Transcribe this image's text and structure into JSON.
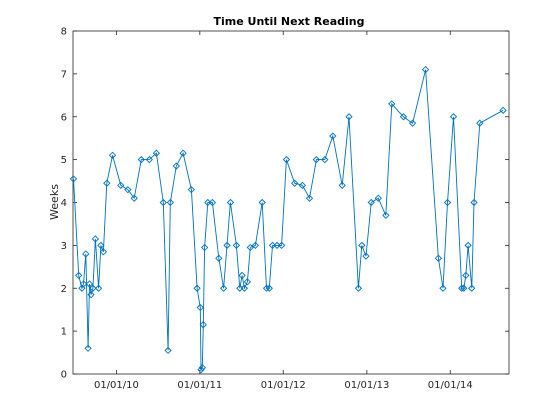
{
  "chart_data": {
    "type": "line",
    "title": "Time Until Next Reading",
    "xlabel": "",
    "ylabel": "Weeks",
    "ylim": [
      0,
      8
    ],
    "xlim": [
      "2009-06-25",
      "2014-09-15"
    ],
    "grid": false,
    "marker": "diamond",
    "colors": {
      "line": "#0072BD",
      "axes": "#262626",
      "background": "#ffffff"
    },
    "x_ticks": [
      "01/01/10",
      "01/01/11",
      "01/01/12",
      "01/01/13",
      "01/01/14"
    ],
    "y_ticks": [
      "0",
      "1",
      "2",
      "3",
      "4",
      "5",
      "6",
      "7",
      "8"
    ],
    "series": [
      {
        "points": [
          {
            "x": "2009-06-27",
            "y": 4.55
          },
          {
            "x": "2009-07-20",
            "y": 2.3
          },
          {
            "x": "2009-08-03",
            "y": 2.0
          },
          {
            "x": "2009-08-10",
            "y": 2.1
          },
          {
            "x": "2009-08-20",
            "y": 2.8
          },
          {
            "x": "2009-08-30",
            "y": 0.6
          },
          {
            "x": "2009-09-05",
            "y": 2.1
          },
          {
            "x": "2009-09-12",
            "y": 1.85
          },
          {
            "x": "2009-09-20",
            "y": 2.0
          },
          {
            "x": "2009-10-01",
            "y": 3.15
          },
          {
            "x": "2009-10-15",
            "y": 2.0
          },
          {
            "x": "2009-10-25",
            "y": 3.0
          },
          {
            "x": "2009-11-05",
            "y": 2.85
          },
          {
            "x": "2009-11-20",
            "y": 4.45
          },
          {
            "x": "2009-12-15",
            "y": 5.1
          },
          {
            "x": "2010-01-20",
            "y": 4.4
          },
          {
            "x": "2010-02-20",
            "y": 4.3
          },
          {
            "x": "2010-03-20",
            "y": 4.1
          },
          {
            "x": "2010-04-20",
            "y": 5.0
          },
          {
            "x": "2010-05-25",
            "y": 5.0
          },
          {
            "x": "2010-06-25",
            "y": 5.15
          },
          {
            "x": "2010-07-25",
            "y": 4.0
          },
          {
            "x": "2010-08-15",
            "y": 0.55
          },
          {
            "x": "2010-08-25",
            "y": 4.0
          },
          {
            "x": "2010-09-20",
            "y": 4.85
          },
          {
            "x": "2010-10-20",
            "y": 5.15
          },
          {
            "x": "2010-11-25",
            "y": 4.3
          },
          {
            "x": "2010-12-20",
            "y": 2.0
          },
          {
            "x": "2011-01-03",
            "y": 1.55
          },
          {
            "x": "2011-01-06",
            "y": 0.1
          },
          {
            "x": "2011-01-12",
            "y": 0.15
          },
          {
            "x": "2011-01-16",
            "y": 1.15
          },
          {
            "x": "2011-01-22",
            "y": 2.95
          },
          {
            "x": "2011-02-05",
            "y": 4.0
          },
          {
            "x": "2011-02-25",
            "y": 4.0
          },
          {
            "x": "2011-03-25",
            "y": 2.7
          },
          {
            "x": "2011-04-15",
            "y": 2.0
          },
          {
            "x": "2011-04-30",
            "y": 3.0
          },
          {
            "x": "2011-05-15",
            "y": 4.0
          },
          {
            "x": "2011-06-10",
            "y": 3.0
          },
          {
            "x": "2011-06-25",
            "y": 2.0
          },
          {
            "x": "2011-07-05",
            "y": 2.3
          },
          {
            "x": "2011-07-15",
            "y": 2.0
          },
          {
            "x": "2011-07-28",
            "y": 2.15
          },
          {
            "x": "2011-08-10",
            "y": 2.95
          },
          {
            "x": "2011-09-01",
            "y": 3.0
          },
          {
            "x": "2011-10-01",
            "y": 4.0
          },
          {
            "x": "2011-10-20",
            "y": 2.0
          },
          {
            "x": "2011-11-01",
            "y": 2.0
          },
          {
            "x": "2011-11-15",
            "y": 3.0
          },
          {
            "x": "2011-12-05",
            "y": 3.0
          },
          {
            "x": "2011-12-25",
            "y": 3.0
          },
          {
            "x": "2012-01-15",
            "y": 5.0
          },
          {
            "x": "2012-02-20",
            "y": 4.45
          },
          {
            "x": "2012-03-25",
            "y": 4.4
          },
          {
            "x": "2012-04-25",
            "y": 4.1
          },
          {
            "x": "2012-05-25",
            "y": 5.0
          },
          {
            "x": "2012-07-01",
            "y": 5.0
          },
          {
            "x": "2012-08-05",
            "y": 5.55
          },
          {
            "x": "2012-09-15",
            "y": 4.4
          },
          {
            "x": "2012-10-15",
            "y": 6.0
          },
          {
            "x": "2012-11-25",
            "y": 2.0
          },
          {
            "x": "2012-12-10",
            "y": 3.0
          },
          {
            "x": "2012-12-28",
            "y": 2.75
          },
          {
            "x": "2013-01-20",
            "y": 4.0
          },
          {
            "x": "2013-02-20",
            "y": 4.1
          },
          {
            "x": "2013-03-25",
            "y": 3.7
          },
          {
            "x": "2013-04-20",
            "y": 6.3
          },
          {
            "x": "2013-06-10",
            "y": 6.0
          },
          {
            "x": "2013-07-20",
            "y": 5.85
          },
          {
            "x": "2013-09-15",
            "y": 7.1
          },
          {
            "x": "2013-11-10",
            "y": 2.7
          },
          {
            "x": "2013-11-30",
            "y": 2.0
          },
          {
            "x": "2013-12-20",
            "y": 4.0
          },
          {
            "x": "2014-01-15",
            "y": 6.0
          },
          {
            "x": "2014-02-20",
            "y": 2.0
          },
          {
            "x": "2014-03-01",
            "y": 2.0
          },
          {
            "x": "2014-03-10",
            "y": 2.3
          },
          {
            "x": "2014-03-20",
            "y": 3.0
          },
          {
            "x": "2014-04-05",
            "y": 2.0
          },
          {
            "x": "2014-04-15",
            "y": 4.0
          },
          {
            "x": "2014-05-10",
            "y": 5.85
          },
          {
            "x": "2014-08-20",
            "y": 6.15
          }
        ]
      }
    ]
  }
}
